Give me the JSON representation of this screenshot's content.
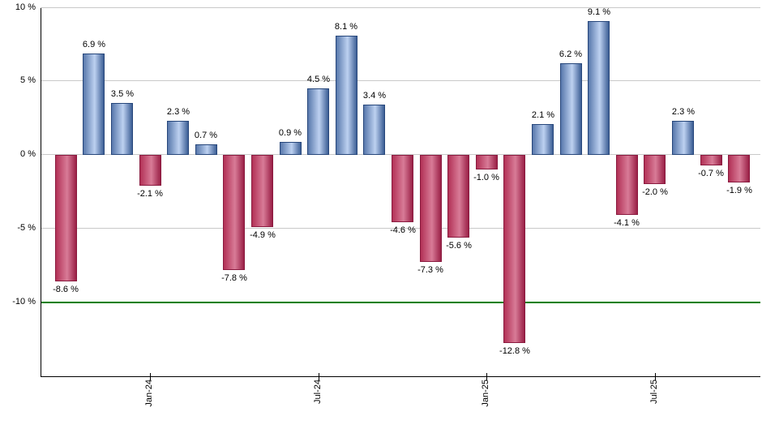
{
  "chart_data": {
    "type": "bar",
    "unit": "%",
    "values": [
      -8.6,
      6.9,
      3.5,
      -2.1,
      2.3,
      0.7,
      -7.8,
      -4.9,
      0.9,
      4.5,
      8.1,
      3.4,
      -4.6,
      -7.3,
      -5.6,
      -1.0,
      -12.8,
      2.1,
      6.2,
      9.1,
      -4.1,
      -2.0,
      2.3,
      -0.7,
      -1.9
    ],
    "bar_labels": [
      "-8.6 %",
      "6.9 %",
      "3.5 %",
      "-2.1 %",
      "2.3 %",
      "0.7 %",
      "-7.8 %",
      "-4.9 %",
      "0.9 %",
      "4.5 %",
      "8.1 %",
      "3.4 %",
      "-4.6 %",
      "-7.3 %",
      "-5.6 %",
      "-1.0 %",
      "-12.8 %",
      "2.1 %",
      "6.2 %",
      "9.1 %",
      "-4.1 %",
      "-2.0 %",
      "2.3 %",
      "-0.7 %",
      "-1.9 %"
    ],
    "x_ticks": [
      {
        "label": "Jan-24",
        "bar_index": 3
      },
      {
        "label": "Jul-24",
        "bar_index": 9
      },
      {
        "label": "Jan-25",
        "bar_index": 15
      },
      {
        "label": "Jul-25",
        "bar_index": 21
      }
    ],
    "y_ticks": [
      {
        "label": "10 %",
        "value": 10
      },
      {
        "label": "5 %",
        "value": 5
      },
      {
        "label": "0 %",
        "value": 0
      },
      {
        "label": "-5 %",
        "value": -5
      },
      {
        "label": "-10 %",
        "value": -10
      }
    ],
    "ylim": [
      -15,
      10
    ],
    "grid": true,
    "legend": "none",
    "reference_line": {
      "value": -10,
      "color": "#008000"
    },
    "colors": {
      "positive_edge_left": "#5878ac",
      "positive_mid": "#bdd1f0",
      "positive_edge_right": "#3c5e95",
      "positive_border": "#27477b",
      "negative_edge_left": "#b23156",
      "negative_mid": "#d87b97",
      "negative_edge_right": "#9a2046",
      "negative_border": "#8a1a3f",
      "gridline": "#c9c9c9",
      "axis": "#000000",
      "label_text": "#000000",
      "background": "#ffffff"
    }
  }
}
